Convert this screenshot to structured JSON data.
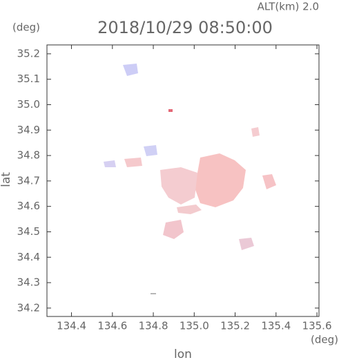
{
  "chart_data": {
    "type": "radar-map",
    "title": "2018/10/29 08:50:00",
    "subtitle": "ALT(km) 2.0",
    "y_unit": "(deg)",
    "x_unit": "(deg)",
    "x_label": "lon",
    "y_label": "lat",
    "xlim": [
      134.28,
      135.61
    ],
    "ylim": [
      34.167,
      35.235
    ],
    "xticks": [
      134.4,
      134.6,
      134.8,
      {
        "value": 135,
        "label": "135.0"
      },
      135.2,
      135.4,
      135.6
    ],
    "yticks": [
      34.2,
      34.3,
      34.4,
      34.5,
      34.6,
      34.7,
      34.8,
      34.9,
      {
        "value": 35,
        "label": "35.0"
      },
      35.1,
      35.2
    ]
  }
}
